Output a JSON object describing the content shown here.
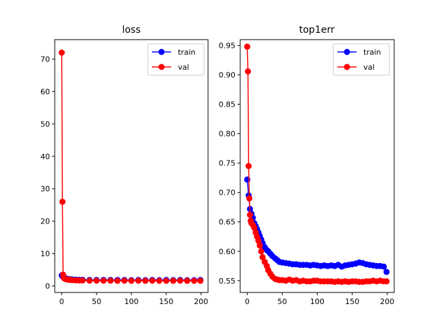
{
  "chart_data": [
    {
      "type": "line",
      "title": "loss",
      "xlabel": "",
      "ylabel": "",
      "xlim": [
        -10,
        210
      ],
      "ylim": [
        -2,
        76
      ],
      "xticks": [
        0,
        50,
        100,
        150,
        200
      ],
      "yticks": [
        0,
        10,
        20,
        30,
        40,
        50,
        60,
        70
      ],
      "legend_position": "upper right",
      "series": [
        {
          "name": "train",
          "color": "#0000ff",
          "x": [
            0,
            1,
            2,
            3,
            4,
            5,
            6,
            8,
            10,
            12,
            15,
            20,
            25,
            30,
            40,
            50,
            60,
            70,
            80,
            90,
            100,
            110,
            120,
            130,
            140,
            150,
            160,
            170,
            180,
            190,
            199
          ],
          "values": [
            3.3,
            3.0,
            2.8,
            2.6,
            2.5,
            2.4,
            2.3,
            2.2,
            2.1,
            2.05,
            2.0,
            1.95,
            1.9,
            1.9,
            1.85,
            1.85,
            1.85,
            1.85,
            1.85,
            1.85,
            1.8,
            1.85,
            1.8,
            1.85,
            1.8,
            1.85,
            1.8,
            1.85,
            1.8,
            1.8,
            1.85
          ]
        },
        {
          "name": "val",
          "color": "#ff0000",
          "x": [
            0,
            1,
            2,
            3,
            4,
            5,
            6,
            8,
            10,
            12,
            15,
            20,
            25,
            30,
            40,
            50,
            60,
            70,
            80,
            90,
            100,
            110,
            120,
            130,
            140,
            150,
            160,
            170,
            180,
            190,
            199
          ],
          "values": [
            72.0,
            26.0,
            3.5,
            2.6,
            2.3,
            2.2,
            2.1,
            2.0,
            1.9,
            1.9,
            1.8,
            1.75,
            1.7,
            1.7,
            1.65,
            1.65,
            1.65,
            1.65,
            1.6,
            1.65,
            1.6,
            1.65,
            1.6,
            1.65,
            1.6,
            1.6,
            1.6,
            1.65,
            1.6,
            1.6,
            1.6
          ]
        }
      ]
    },
    {
      "type": "line",
      "title": "top1err",
      "xlabel": "",
      "ylabel": "",
      "xlim": [
        -10,
        210
      ],
      "ylim": [
        0.53,
        0.96
      ],
      "xticks": [
        0,
        50,
        100,
        150,
        200
      ],
      "yticks": [
        0.55,
        0.6,
        0.65,
        0.7,
        0.75,
        0.8,
        0.85,
        0.9,
        0.95
      ],
      "ytick_labels": [
        "0.55",
        "0.60",
        "0.65",
        "0.70",
        "0.75",
        "0.80",
        "0.85",
        "0.90",
        "0.95"
      ],
      "legend_position": "upper right",
      "series": [
        {
          "name": "train",
          "color": "#0000ff",
          "x": [
            0,
            2,
            4,
            6,
            8,
            10,
            12,
            14,
            16,
            18,
            20,
            22,
            25,
            28,
            30,
            33,
            36,
            40,
            43,
            46,
            50,
            55,
            60,
            65,
            70,
            75,
            80,
            85,
            90,
            95,
            100,
            105,
            110,
            115,
            120,
            125,
            130,
            135,
            140,
            145,
            150,
            155,
            160,
            165,
            170,
            175,
            180,
            185,
            190,
            195,
            199
          ],
          "values": [
            0.722,
            0.695,
            0.672,
            0.664,
            0.657,
            0.648,
            0.643,
            0.638,
            0.632,
            0.626,
            0.62,
            0.614,
            0.607,
            0.602,
            0.6,
            0.596,
            0.592,
            0.588,
            0.585,
            0.582,
            0.581,
            0.58,
            0.579,
            0.578,
            0.578,
            0.577,
            0.577,
            0.577,
            0.576,
            0.577,
            0.576,
            0.575,
            0.576,
            0.575,
            0.576,
            0.575,
            0.577,
            0.574,
            0.576,
            0.577,
            0.578,
            0.579,
            0.581,
            0.58,
            0.578,
            0.577,
            0.576,
            0.575,
            0.575,
            0.574,
            0.565
          ]
        },
        {
          "name": "val",
          "color": "#ff0000",
          "x": [
            0,
            1,
            2,
            3,
            4,
            5,
            6,
            8,
            10,
            12,
            14,
            16,
            18,
            20,
            22,
            25,
            28,
            30,
            33,
            36,
            40,
            43,
            46,
            50,
            55,
            60,
            65,
            70,
            75,
            80,
            85,
            90,
            95,
            100,
            105,
            110,
            115,
            120,
            125,
            130,
            135,
            140,
            145,
            150,
            155,
            160,
            165,
            170,
            175,
            180,
            185,
            190,
            195,
            199
          ],
          "values": [
            0.948,
            0.906,
            0.745,
            0.69,
            0.662,
            0.652,
            0.648,
            0.645,
            0.64,
            0.632,
            0.625,
            0.618,
            0.61,
            0.6,
            0.59,
            0.582,
            0.575,
            0.568,
            0.562,
            0.557,
            0.553,
            0.552,
            0.551,
            0.551,
            0.55,
            0.552,
            0.55,
            0.551,
            0.549,
            0.55,
            0.549,
            0.549,
            0.55,
            0.55,
            0.549,
            0.549,
            0.549,
            0.549,
            0.548,
            0.549,
            0.548,
            0.549,
            0.548,
            0.549,
            0.549,
            0.548,
            0.548,
            0.549,
            0.549,
            0.55,
            0.549,
            0.55,
            0.549,
            0.549
          ]
        }
      ]
    }
  ]
}
